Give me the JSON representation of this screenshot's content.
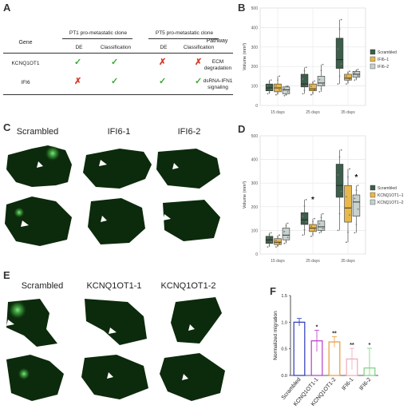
{
  "panel_labels": {
    "A": "A",
    "B": "B",
    "C": "C",
    "D": "D",
    "E": "E",
    "F": "F"
  },
  "table": {
    "group1": "PT1 pro-metastatic clone",
    "group2": "PT5 pro-metastatic clone",
    "col_gene": "Gene",
    "col_de": "DE",
    "col_class": "Classification",
    "col_pathway": "Pathway",
    "rows": [
      {
        "gene": "KCNQ1OT1",
        "pt1_de": "check",
        "pt1_class": "check",
        "pt5_de": "cross",
        "pt5_class": "cross",
        "pathway_line1": "ECM",
        "pathway_line2": "degradation"
      },
      {
        "gene": "IFI6",
        "pt1_de": "cross",
        "pt1_class": "check",
        "pt5_de": "check",
        "pt5_class": "check",
        "pathway_line1": "dsRNA-IFN1",
        "pathway_line2": "signaling"
      }
    ]
  },
  "images_c": {
    "labels": [
      "Scrambled",
      "IFI6-1",
      "IFI6-2"
    ]
  },
  "images_e": {
    "labels": [
      "Scrambled",
      "KCNQ1OT1-1",
      "KCNQ1OT1-2"
    ]
  },
  "chart_data": [
    {
      "panel": "B",
      "type": "box",
      "ylabel": "Volume (mm³)",
      "ylim": [
        0,
        500
      ],
      "yticks": [
        0,
        100,
        200,
        300,
        400,
        500
      ],
      "categories": [
        "15 days",
        "25 days",
        "35 days"
      ],
      "series": [
        {
          "name": "Scrambled",
          "color": "#3c5e4a",
          "boxes": [
            [
              60,
              75,
              90,
              110,
              130
            ],
            [
              60,
              95,
              110,
              160,
              195
            ],
            [
              110,
              190,
              235,
              345,
              440
            ]
          ]
        },
        {
          "name": "IFI6–1",
          "color": "#e8b84a",
          "boxes": [
            [
              55,
              70,
              90,
              110,
              150
            ],
            [
              55,
              75,
              85,
              110,
              125
            ],
            [
              110,
              130,
              140,
              160,
              175
            ]
          ]
        },
        {
          "name": "IFI6–2",
          "color": "#c7d2ce",
          "boxes": [
            [
              50,
              60,
              80,
              95,
              100
            ],
            [
              70,
              100,
              115,
              150,
              210
            ],
            [
              130,
              145,
              160,
              175,
              185
            ]
          ]
        }
      ],
      "legend": "right",
      "grid": true
    },
    {
      "panel": "D",
      "type": "box",
      "ylabel": "Volume (mm³)",
      "ylim": [
        0,
        500
      ],
      "yticks": [
        0,
        100,
        200,
        300,
        400,
        500
      ],
      "categories": [
        "15 days",
        "25 days",
        "35 days"
      ],
      "series": [
        {
          "name": "Scrambled",
          "color": "#3c5e4a",
          "boxes": [
            [
              30,
              45,
              60,
              75,
              90
            ],
            [
              80,
              125,
              145,
              175,
              230
            ],
            [
              100,
              240,
              290,
              380,
              440
            ]
          ]
        },
        {
          "name": "KCNQ1OT1–1",
          "color": "#e8b84a",
          "boxes": [
            [
              30,
              40,
              50,
              65,
              80
            ],
            [
              75,
              95,
              110,
              125,
              150
            ],
            [
              50,
              135,
              195,
              290,
              360
            ]
          ]
        },
        {
          "name": "KCNQ1OT1–2",
          "color": "#c7d2ce",
          "boxes": [
            [
              45,
              60,
              80,
              110,
              130
            ],
            [
              90,
              100,
              115,
              140,
              170
            ],
            [
              90,
              160,
              220,
              250,
              290
            ]
          ]
        }
      ],
      "annotations": [
        "*",
        "*"
      ],
      "legend": "right",
      "grid": true
    },
    {
      "panel": "F",
      "type": "bar",
      "ylabel": "Normalized migration",
      "ylim": [
        0,
        1.5
      ],
      "yticks": [
        0.0,
        0.5,
        1.0,
        1.5
      ],
      "ytick_labels": [
        "0.0",
        "0.5",
        "1.0",
        "1.5"
      ],
      "categories": [
        "Scrambled",
        "KCNQ1OT1-1",
        "KCNQ1OT1-2",
        "IFI6-1",
        "IFI6-2"
      ],
      "values": [
        1.0,
        0.65,
        0.63,
        0.31,
        0.14
      ],
      "errors": [
        0.07,
        0.2,
        0.1,
        0.2,
        0.37
      ],
      "colors": [
        "#2c36b8",
        "#b83ac8",
        "#e89a3a",
        "#f0a8b8",
        "#7ed07e"
      ],
      "annotations": [
        "",
        "*",
        "**",
        "**",
        "*"
      ]
    }
  ]
}
